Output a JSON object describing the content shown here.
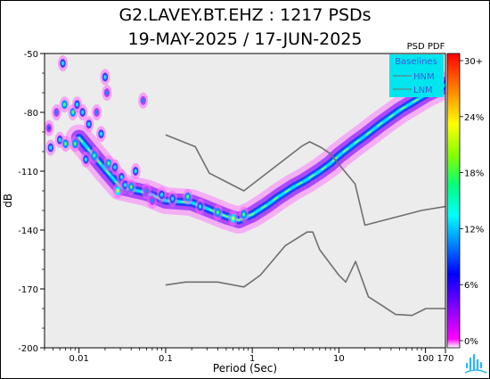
{
  "chart_data": {
    "type": "heatmap",
    "title": "G2.LAVEY.BT.EHZ : 1217 PSDs",
    "subtitle": "19-MAY-2025 / 17-JUN-2025",
    "xlabel": "Period (Sec)",
    "ylabel": "dB",
    "x_scale": "log",
    "xlim": [
      0.004,
      170
    ],
    "ylim": [
      -200,
      -50
    ],
    "x_ticks": [
      {
        "value": 0.01,
        "label": "0.01"
      },
      {
        "value": 0.1,
        "label": "0.1"
      },
      {
        "value": 1,
        "label": "1"
      },
      {
        "value": 10,
        "label": "10"
      },
      {
        "value": 100,
        "label": "100"
      },
      {
        "value": 170,
        "label": "170"
      }
    ],
    "y_ticks": [
      {
        "value": -50,
        "label": "-50"
      },
      {
        "value": -80,
        "label": "-80"
      },
      {
        "value": -110,
        "label": "-110"
      },
      {
        "value": -140,
        "label": "-140"
      },
      {
        "value": -170,
        "label": "-170"
      },
      {
        "value": -200,
        "label": "-200"
      }
    ],
    "colorbar": {
      "title": "PSD PDF",
      "ticks": [
        "30+",
        "24%",
        "18%",
        "12%",
        "6%",
        "0%"
      ],
      "colors": [
        "#ff00ff",
        "#8000ff",
        "#0000ff",
        "#0080ff",
        "#00ffff",
        "#00ff80",
        "#80ff00",
        "#ffff00",
        "#ff8000",
        "#ff0000"
      ]
    },
    "legend": {
      "title": "Baselines",
      "position": "top-right",
      "entries": [
        "HNM",
        "LNM"
      ],
      "background": "#00e5ee",
      "text_color": "#3b5bdb"
    },
    "baselines": [
      {
        "name": "HNM",
        "color": "#6f6f6f",
        "points": [
          [
            0.1,
            -91.5
          ],
          [
            0.22,
            -97.5
          ],
          [
            0.32,
            -111
          ],
          [
            0.8,
            -120
          ],
          [
            3.8,
            -97
          ],
          [
            4.6,
            -95
          ],
          [
            6.3,
            -98
          ],
          [
            7.9,
            -101
          ],
          [
            15.4,
            -116.5
          ],
          [
            20,
            -137.5
          ],
          [
            90,
            -130
          ],
          [
            170,
            -128
          ]
        ]
      },
      {
        "name": "LNM",
        "color": "#6f6f6f",
        "points": [
          [
            0.1,
            -168
          ],
          [
            0.17,
            -166.5
          ],
          [
            0.4,
            -166.5
          ],
          [
            0.8,
            -169
          ],
          [
            1.24,
            -163
          ],
          [
            2.4,
            -148
          ],
          [
            4.3,
            -141
          ],
          [
            5,
            -141
          ],
          [
            6,
            -150
          ],
          [
            10,
            -163
          ],
          [
            12,
            -166.5
          ],
          [
            15.6,
            -156
          ],
          [
            21.9,
            -174
          ],
          [
            31.6,
            -178.5
          ],
          [
            45,
            -183
          ],
          [
            70,
            -183.5
          ],
          [
            101,
            -180
          ],
          [
            154,
            -180
          ],
          [
            170,
            -180
          ]
        ]
      }
    ],
    "mode_trace": [
      [
        0.01,
        -93
      ],
      [
        0.02,
        -109
      ],
      [
        0.03,
        -118
      ],
      [
        0.06,
        -121
      ],
      [
        0.1,
        -125
      ],
      [
        0.2,
        -126
      ],
      [
        0.3,
        -129
      ],
      [
        0.5,
        -133
      ],
      [
        0.7,
        -135
      ],
      [
        1,
        -132
      ],
      [
        1.5,
        -127
      ],
      [
        2,
        -123
      ],
      [
        3,
        -118
      ],
      [
        4,
        -115
      ],
      [
        6,
        -110
      ],
      [
        8,
        -106
      ],
      [
        10,
        -102
      ],
      [
        15,
        -96
      ],
      [
        20,
        -92
      ],
      [
        30,
        -86
      ],
      [
        50,
        -79
      ],
      [
        100,
        -71
      ],
      [
        170,
        -66
      ]
    ],
    "density_clusters": [
      {
        "x": 0.0045,
        "y": -88,
        "level": 0.35
      },
      {
        "x": 0.0047,
        "y": -98,
        "level": 0.5
      },
      {
        "x": 0.0055,
        "y": -80,
        "level": 0.45
      },
      {
        "x": 0.006,
        "y": -94,
        "level": 0.6
      },
      {
        "x": 0.0065,
        "y": -55,
        "level": 0.55
      },
      {
        "x": 0.0068,
        "y": -76,
        "level": 0.7
      },
      {
        "x": 0.007,
        "y": -96,
        "level": 0.65
      },
      {
        "x": 0.0085,
        "y": -80,
        "level": 0.75
      },
      {
        "x": 0.009,
        "y": -96,
        "level": 0.7
      },
      {
        "x": 0.0095,
        "y": -76,
        "level": 0.6
      },
      {
        "x": 0.011,
        "y": -80,
        "level": 0.55
      },
      {
        "x": 0.012,
        "y": -104,
        "level": 0.5
      },
      {
        "x": 0.013,
        "y": -86,
        "level": 0.6
      },
      {
        "x": 0.015,
        "y": -102,
        "level": 0.75
      },
      {
        "x": 0.016,
        "y": -80,
        "level": 0.45
      },
      {
        "x": 0.018,
        "y": -91,
        "level": 0.6
      },
      {
        "x": 0.02,
        "y": -62,
        "level": 0.5
      },
      {
        "x": 0.021,
        "y": -70,
        "level": 0.45
      },
      {
        "x": 0.022,
        "y": -106,
        "level": 0.7
      },
      {
        "x": 0.026,
        "y": -108,
        "level": 0.55
      },
      {
        "x": 0.028,
        "y": -120,
        "level": 0.85
      },
      {
        "x": 0.031,
        "y": -113,
        "level": 0.6
      },
      {
        "x": 0.034,
        "y": -117,
        "level": 0.6
      },
      {
        "x": 0.04,
        "y": -118,
        "level": 0.7
      },
      {
        "x": 0.045,
        "y": -110,
        "level": 0.5
      },
      {
        "x": 0.055,
        "y": -74,
        "level": 0.45
      },
      {
        "x": 0.06,
        "y": -120,
        "level": 0.45
      },
      {
        "x": 0.07,
        "y": -125,
        "level": 0.4
      },
      {
        "x": 0.09,
        "y": -122,
        "level": 0.55
      },
      {
        "x": 0.12,
        "y": -124,
        "level": 0.6
      },
      {
        "x": 0.18,
        "y": -123,
        "level": 0.7
      },
      {
        "x": 0.25,
        "y": -128,
        "level": 0.55
      },
      {
        "x": 0.4,
        "y": -131,
        "level": 0.65
      },
      {
        "x": 0.6,
        "y": -134,
        "level": 0.9
      },
      {
        "x": 0.8,
        "y": -132,
        "level": 0.7
      }
    ]
  }
}
